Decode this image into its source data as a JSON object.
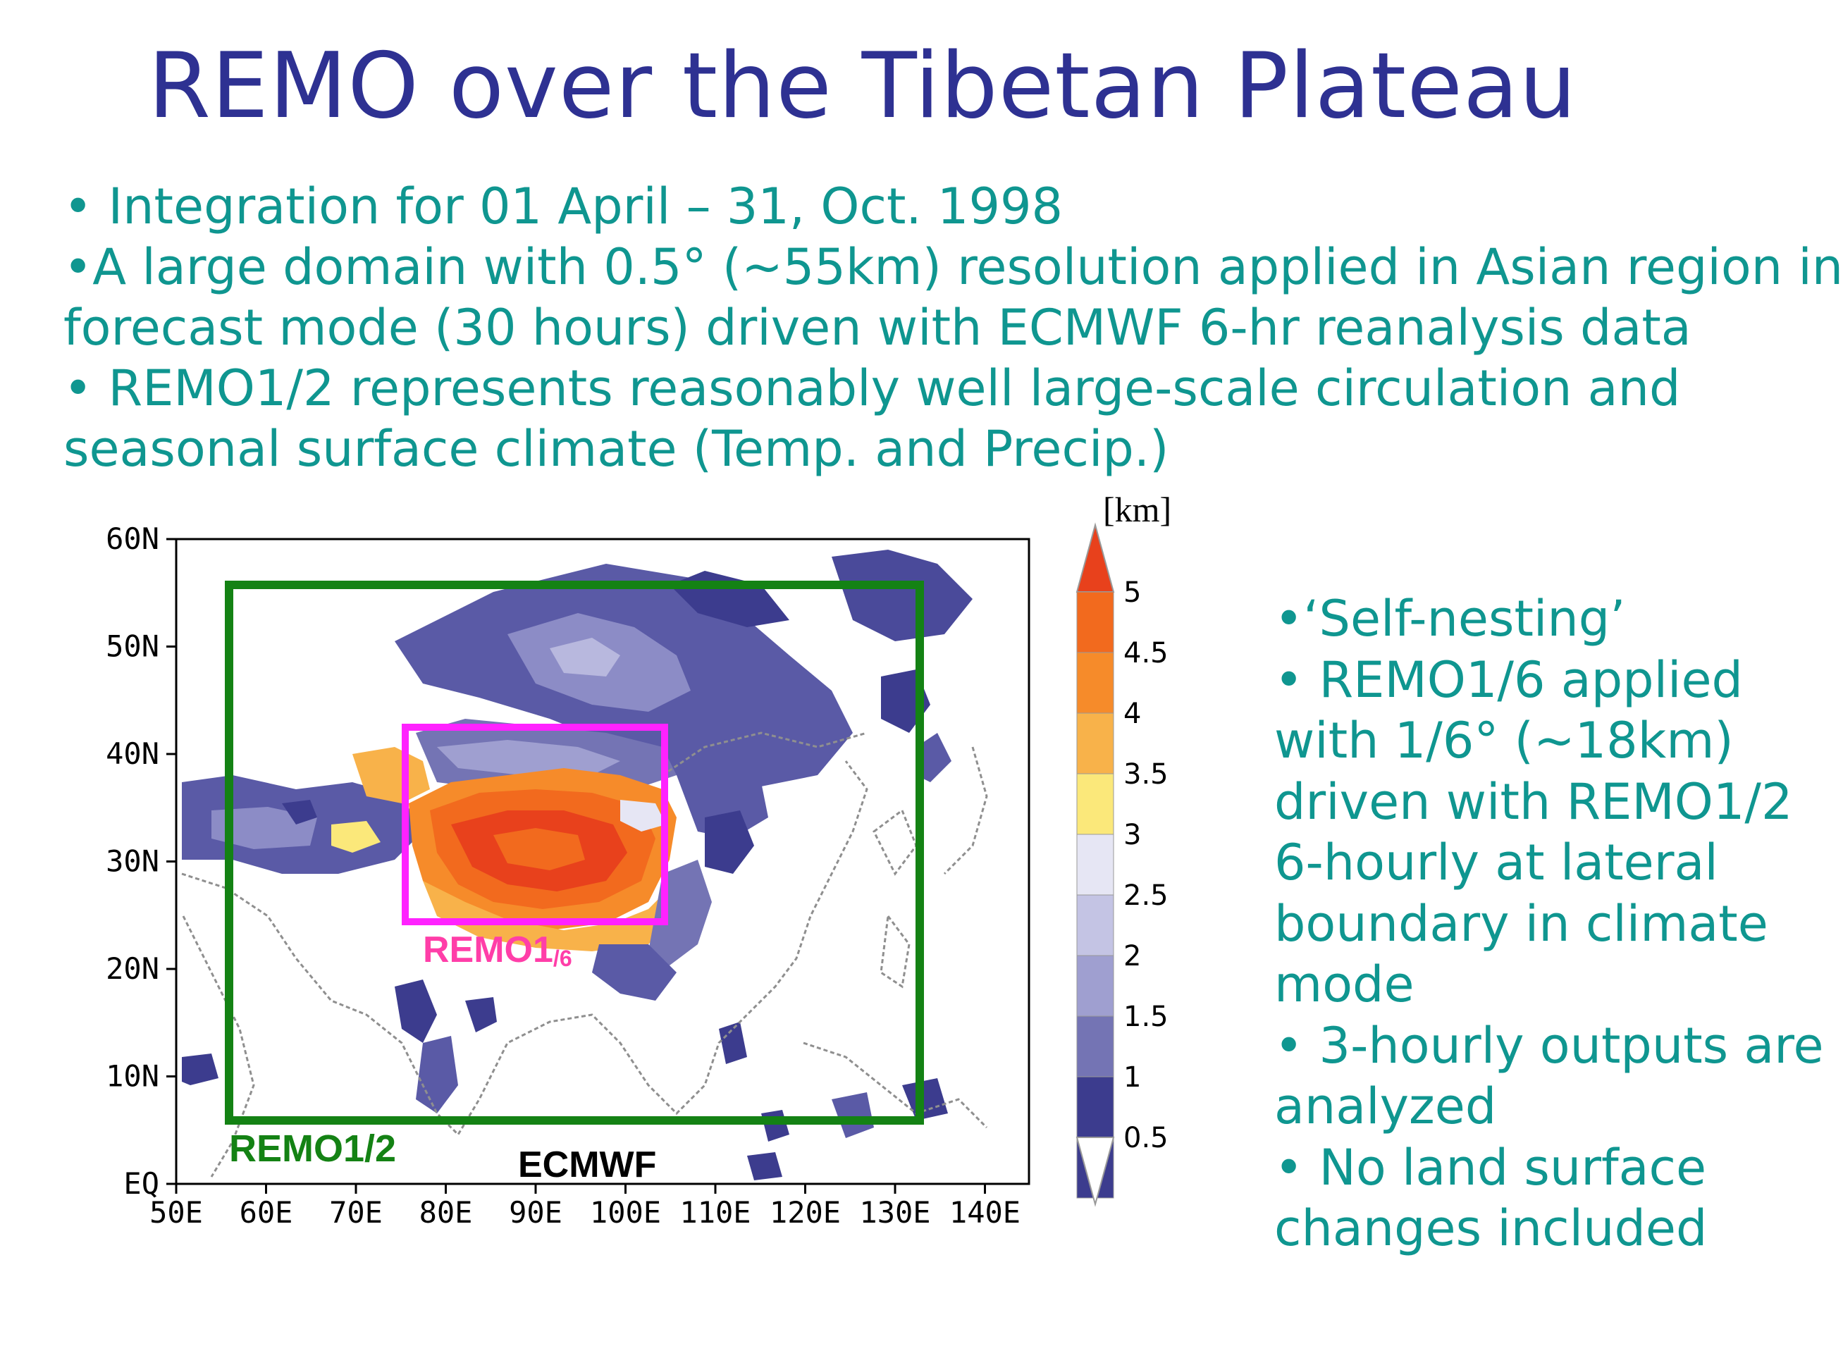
{
  "title": "REMO over the Tibetan Plateau",
  "bullets": [
    "• Integration for 01 April – 31, Oct. 1998",
    "•A large domain with 0.5° (~55km) resolution applied in Asian region in",
    "forecast mode (30 hours) driven with ECMWF 6-hr reanalysis data",
    "• REMO1/2 represents reasonably well large-scale circulation and",
    "seasonal surface climate (Temp. and Precip.)"
  ],
  "side_bullets": [
    "•‘Self-nesting’",
    "• REMO1/6 applied",
    "with 1/6° (~18km)",
    "driven with REMO1/2",
    "6-hourly at lateral",
    "boundary in climate",
    "mode",
    "• 3-hourly outputs are",
    "analyzed",
    "• No land surface",
    "changes included"
  ],
  "map": {
    "lat_labels": [
      "60N",
      "50N",
      "40N",
      "30N",
      "20N",
      "10N",
      "EQ"
    ],
    "lon_labels": [
      "50E",
      "60E",
      "70E",
      "80E",
      "90E",
      "100E",
      "110E",
      "120E",
      "130E",
      "140E"
    ],
    "domain_labels": {
      "remo12": "REMO1/2",
      "remo16_main": "REMO1",
      "remo16_sub": "/6",
      "ecmwf": "ECMWF"
    },
    "colorbar": {
      "unit": "[km]",
      "levels": [
        "5",
        "4.5",
        "4",
        "3.5",
        "3",
        "2.5",
        "2",
        "1.5",
        "1",
        "0.5"
      ],
      "colors": [
        "#e8411c",
        "#f26a1e",
        "#f68b2a",
        "#f8b24a",
        "#fbe87a",
        "#e6e6f4",
        "#c4c4e4",
        "#9f9fd0",
        "#7474b4",
        "#3c3c8e"
      ]
    },
    "frame_colors": {
      "remo12": "#148214",
      "remo16": "#ff22ff"
    }
  }
}
